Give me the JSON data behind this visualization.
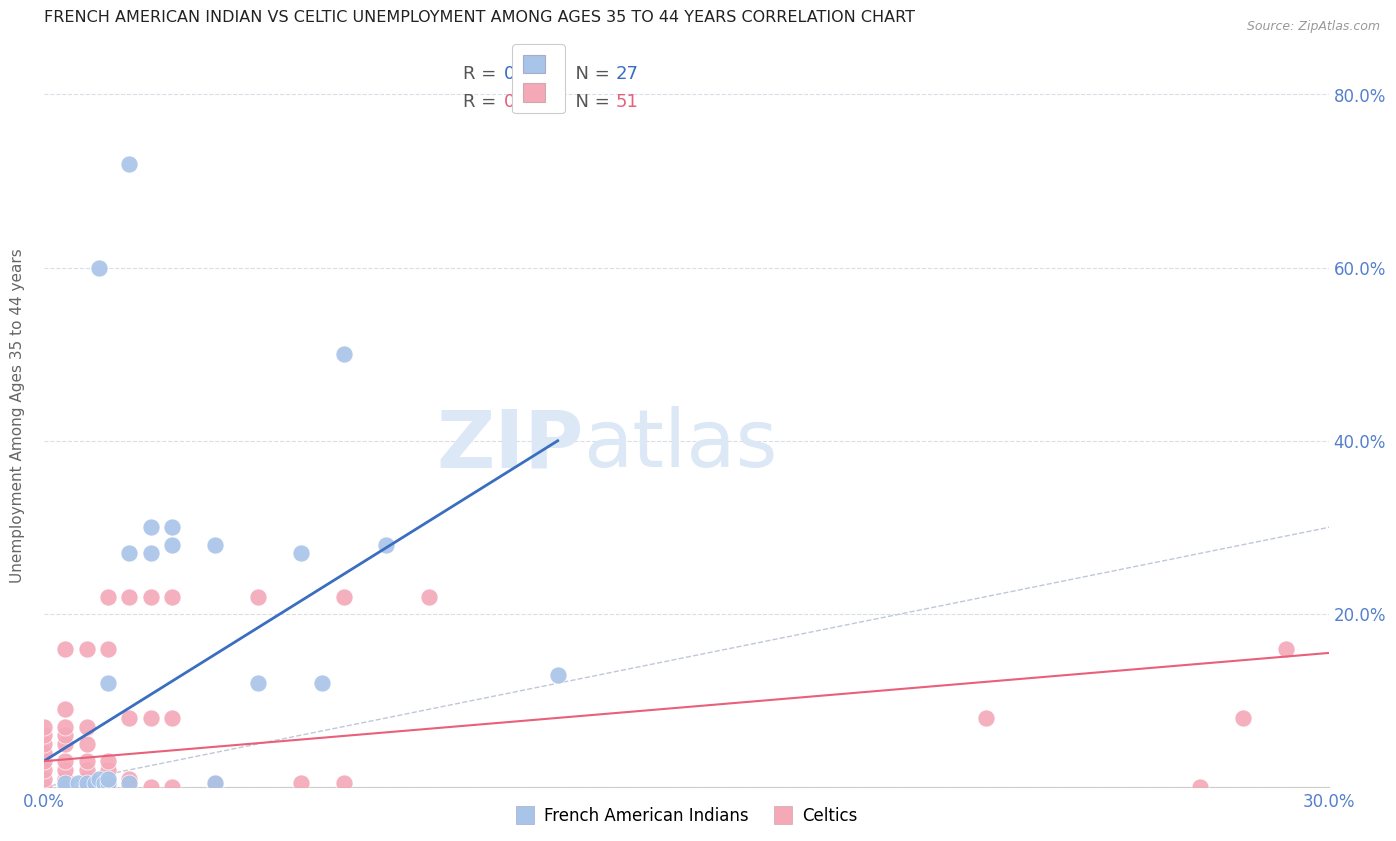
{
  "title": "FRENCH AMERICAN INDIAN VS CELTIC UNEMPLOYMENT AMONG AGES 35 TO 44 YEARS CORRELATION CHART",
  "source": "Source: ZipAtlas.com",
  "ylabel": "Unemployment Among Ages 35 to 44 years",
  "legend1_label": "French American Indians",
  "legend2_label": "Celtics",
  "R1": 0.417,
  "N1": 27,
  "R2": 0.182,
  "N2": 51,
  "xmin": 0.0,
  "xmax": 0.3,
  "ymin": 0.0,
  "ymax": 0.86,
  "blue_color": "#a8c4e8",
  "pink_color": "#f4a8b8",
  "blue_line_color": "#3a6ec0",
  "pink_line_color": "#e8607a",
  "ref_line_color": "#c0c8d8",
  "tick_color": "#5580cc",
  "axis_label_color": "#666666",
  "title_color": "#222222",
  "watermark_color": "#dce8f5",
  "blue_dots": [
    [
      0.005,
      0.0
    ],
    [
      0.005,
      0.005
    ],
    [
      0.008,
      0.005
    ],
    [
      0.01,
      0.0
    ],
    [
      0.01,
      0.005
    ],
    [
      0.012,
      0.005
    ],
    [
      0.013,
      0.01
    ],
    [
      0.014,
      0.005
    ],
    [
      0.015,
      0.005
    ],
    [
      0.015,
      0.01
    ],
    [
      0.015,
      0.12
    ],
    [
      0.02,
      0.005
    ],
    [
      0.02,
      0.27
    ],
    [
      0.025,
      0.27
    ],
    [
      0.025,
      0.3
    ],
    [
      0.03,
      0.28
    ],
    [
      0.03,
      0.3
    ],
    [
      0.04,
      0.28
    ],
    [
      0.04,
      0.005
    ],
    [
      0.05,
      0.12
    ],
    [
      0.06,
      0.27
    ],
    [
      0.065,
      0.12
    ],
    [
      0.08,
      0.28
    ],
    [
      0.013,
      0.6
    ],
    [
      0.02,
      0.72
    ],
    [
      0.07,
      0.5
    ],
    [
      0.12,
      0.13
    ]
  ],
  "pink_dots": [
    [
      0.0,
      0.0
    ],
    [
      0.0,
      0.01
    ],
    [
      0.0,
      0.02
    ],
    [
      0.0,
      0.03
    ],
    [
      0.0,
      0.04
    ],
    [
      0.0,
      0.05
    ],
    [
      0.0,
      0.06
    ],
    [
      0.0,
      0.07
    ],
    [
      0.005,
      0.0
    ],
    [
      0.005,
      0.01
    ],
    [
      0.005,
      0.02
    ],
    [
      0.005,
      0.03
    ],
    [
      0.005,
      0.05
    ],
    [
      0.005,
      0.06
    ],
    [
      0.005,
      0.07
    ],
    [
      0.005,
      0.09
    ],
    [
      0.01,
      0.0
    ],
    [
      0.01,
      0.01
    ],
    [
      0.01,
      0.02
    ],
    [
      0.01,
      0.03
    ],
    [
      0.01,
      0.05
    ],
    [
      0.01,
      0.07
    ],
    [
      0.015,
      0.0
    ],
    [
      0.015,
      0.01
    ],
    [
      0.015,
      0.02
    ],
    [
      0.015,
      0.03
    ],
    [
      0.015,
      0.22
    ],
    [
      0.02,
      0.0
    ],
    [
      0.02,
      0.01
    ],
    [
      0.02,
      0.22
    ],
    [
      0.025,
      0.0
    ],
    [
      0.025,
      0.22
    ],
    [
      0.03,
      0.0
    ],
    [
      0.03,
      0.22
    ],
    [
      0.04,
      0.0
    ],
    [
      0.04,
      0.005
    ],
    [
      0.05,
      0.22
    ],
    [
      0.06,
      0.005
    ],
    [
      0.07,
      0.005
    ],
    [
      0.005,
      0.16
    ],
    [
      0.01,
      0.16
    ],
    [
      0.015,
      0.16
    ],
    [
      0.02,
      0.08
    ],
    [
      0.025,
      0.08
    ],
    [
      0.03,
      0.08
    ],
    [
      0.07,
      0.22
    ],
    [
      0.09,
      0.22
    ],
    [
      0.22,
      0.08
    ],
    [
      0.27,
      0.0
    ],
    [
      0.28,
      0.08
    ],
    [
      0.29,
      0.16
    ]
  ],
  "blue_line": [
    [
      0.0,
      0.03
    ],
    [
      0.12,
      0.4
    ]
  ],
  "pink_line": [
    [
      0.0,
      0.03
    ],
    [
      0.3,
      0.155
    ]
  ],
  "ref_line": [
    [
      0.0,
      0.0
    ],
    [
      0.86,
      0.86
    ]
  ]
}
